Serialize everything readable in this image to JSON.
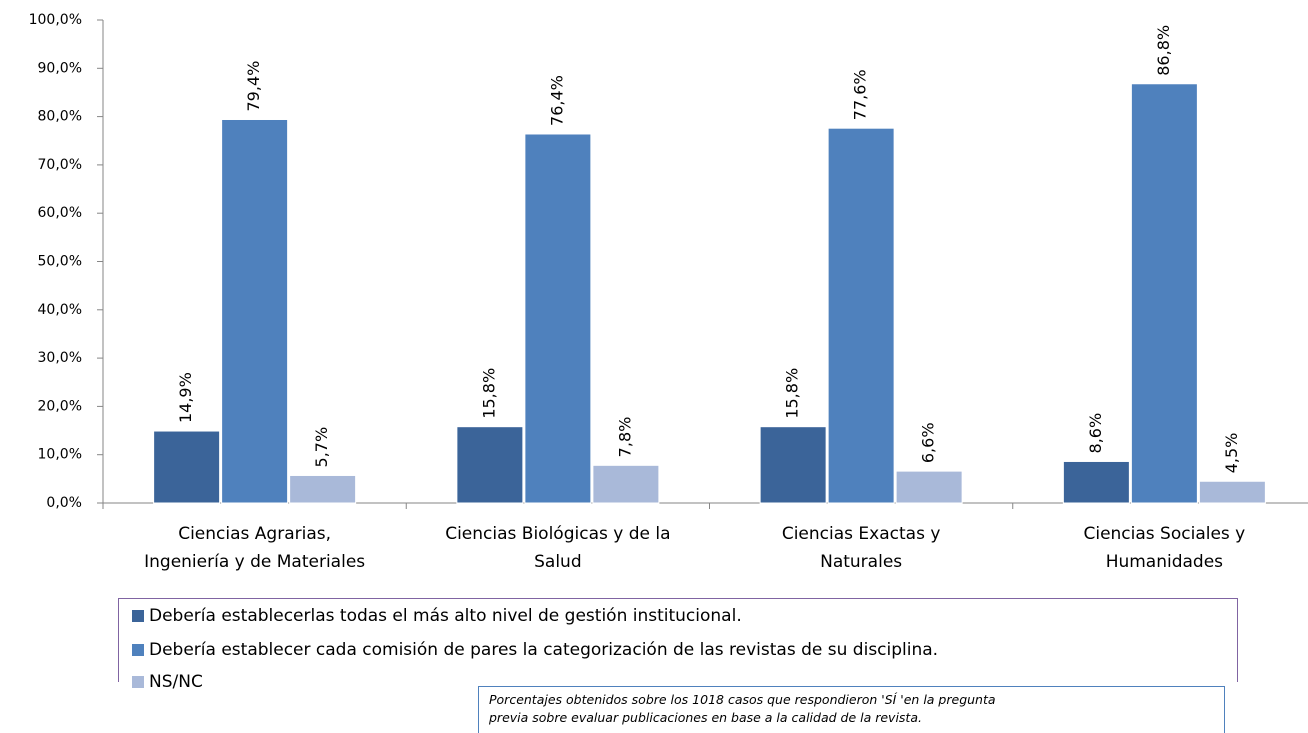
{
  "chart_data": {
    "type": "bar",
    "categories": [
      "Ciencias Agrarias,\nIngeniería y de Materiales",
      "Ciencias Biológicas y de la\nSalud",
      "Ciencias Exactas y\nNaturales",
      "Ciencias Sociales y\nHumanidades"
    ],
    "series": [
      {
        "name": "Debería establecerlas todas el más alto nivel de gestión institucional.",
        "color": "#3b6499",
        "values": [
          14.9,
          15.8,
          15.8,
          8.6
        ],
        "value_labels": [
          "14,9%",
          "15,8%",
          "15,8%",
          "8,6%"
        ]
      },
      {
        "name": "Debería establecer cada comisión de pares la categorización de las revistas de su disciplina.",
        "color": "#4f81bd",
        "values": [
          79.4,
          76.4,
          77.6,
          86.8
        ],
        "value_labels": [
          "79,4%",
          "76,4%",
          "77,6%",
          "86,8%"
        ]
      },
      {
        "name": "NS/NC",
        "color": "#a9b9d9",
        "values": [
          5.7,
          7.8,
          6.6,
          4.5
        ],
        "value_labels": [
          "5,7%",
          "7,8%",
          "6,6%",
          "4,5%"
        ]
      }
    ],
    "ylim": [
      0,
      100
    ],
    "yticks": [
      {
        "value": 0,
        "label": "0,0%"
      },
      {
        "value": 10,
        "label": "10,0%"
      },
      {
        "value": 20,
        "label": "20,0%"
      },
      {
        "value": 30,
        "label": "30,0%"
      },
      {
        "value": 40,
        "label": "40,0%"
      },
      {
        "value": 50,
        "label": "50,0%"
      },
      {
        "value": 60,
        "label": "60,0%"
      },
      {
        "value": 70,
        "label": "70,0%"
      },
      {
        "value": 80,
        "label": "80,0%"
      },
      {
        "value": 90,
        "label": "90,0%"
      },
      {
        "value": 100,
        "label": "100,0%"
      }
    ],
    "annotation": "Porcentajes obtenidos sobre los 1018  casos que respondieron 'SÍ 'en la pregunta\nprevia sobre evaluar publicaciones en base a la calidad de la revista."
  }
}
